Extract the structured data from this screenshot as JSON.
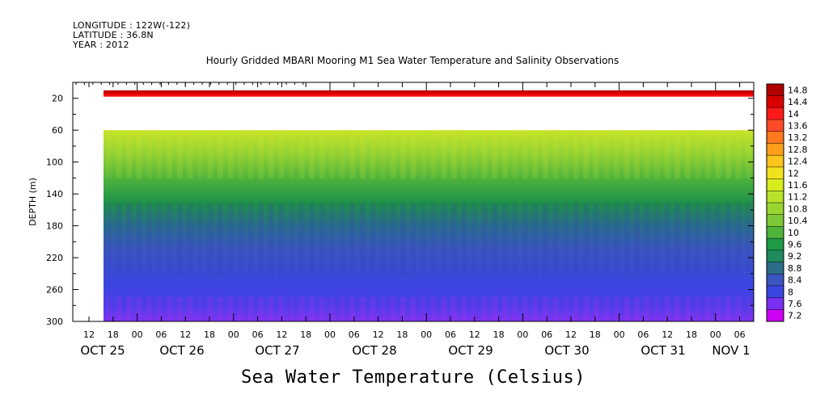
{
  "header": {
    "longitude": "LONGITUDE : 122W(-122)",
    "latitude": "LATITUDE : 36.8N",
    "year": "YEAR : 2012"
  },
  "chart_data": {
    "type": "heatmap",
    "title": "Hourly Gridded MBARI Mooring M1 Sea Water Temperature and Salinity Observations",
    "xlabel": "Sea Water Temperature (Celsius)",
    "ylabel": "DEPTH (m)",
    "x_ticks": [
      "12",
      "18",
      "00",
      "06",
      "12",
      "18",
      "00",
      "06",
      "12",
      "18",
      "00",
      "06",
      "12",
      "18",
      "00",
      "06",
      "12",
      "18",
      "00",
      "06",
      "12",
      "18",
      "00",
      "06",
      "12",
      "18",
      "00",
      "06"
    ],
    "x_day_labels": [
      "OCT 25",
      "OCT 26",
      "OCT 27",
      "OCT 28",
      "OCT 29",
      "OCT 30",
      "OCT 31",
      "NOV 1"
    ],
    "y_ticks": [
      20,
      60,
      100,
      140,
      180,
      220,
      260,
      300
    ],
    "ylim": [
      0,
      300
    ],
    "colorbar_ticks": [
      "14.8",
      "14.4",
      "14",
      "13.6",
      "13.2",
      "12.8",
      "12.4",
      "12",
      "11.6",
      "11.2",
      "10.8",
      "10.4",
      "10",
      "9.6",
      "9.2",
      "8.8",
      "8.4",
      "8",
      "7.6",
      "7.2"
    ],
    "colorbar_colors": [
      "#b00000",
      "#d80000",
      "#ff1a1a",
      "#ff4a28",
      "#ff7a1e",
      "#ff9e1a",
      "#ffc41c",
      "#f2e21e",
      "#d8ec1e",
      "#b8e22a",
      "#99d630",
      "#7cc836",
      "#4eb43a",
      "#1e9a44",
      "#1e8a5e",
      "#2a6e8a",
      "#3a54c0",
      "#3a46e2",
      "#7a2ef2",
      "#cc00f2"
    ],
    "depth_rows": [
      {
        "depth_top": 0,
        "depth_bottom": 10,
        "temperature": null
      },
      {
        "depth_top": 10,
        "depth_bottom": 18,
        "temperature": 14.6
      },
      {
        "depth_top": 18,
        "depth_bottom": 60,
        "temperature": null
      },
      {
        "depth_top": 60,
        "depth_bottom": 100,
        "temperature": 11.2
      },
      {
        "depth_top": 100,
        "depth_bottom": 140,
        "temperature": 10.0
      },
      {
        "depth_top": 140,
        "depth_bottom": 180,
        "temperature": 9.2
      },
      {
        "depth_top": 180,
        "depth_bottom": 220,
        "temperature": 8.6
      },
      {
        "depth_top": 220,
        "depth_bottom": 260,
        "temperature": 8.2
      },
      {
        "depth_top": 260,
        "depth_bottom": 300,
        "temperature": 7.8
      }
    ],
    "data_start_tick": "18",
    "data_start_day": "OCT 25"
  }
}
